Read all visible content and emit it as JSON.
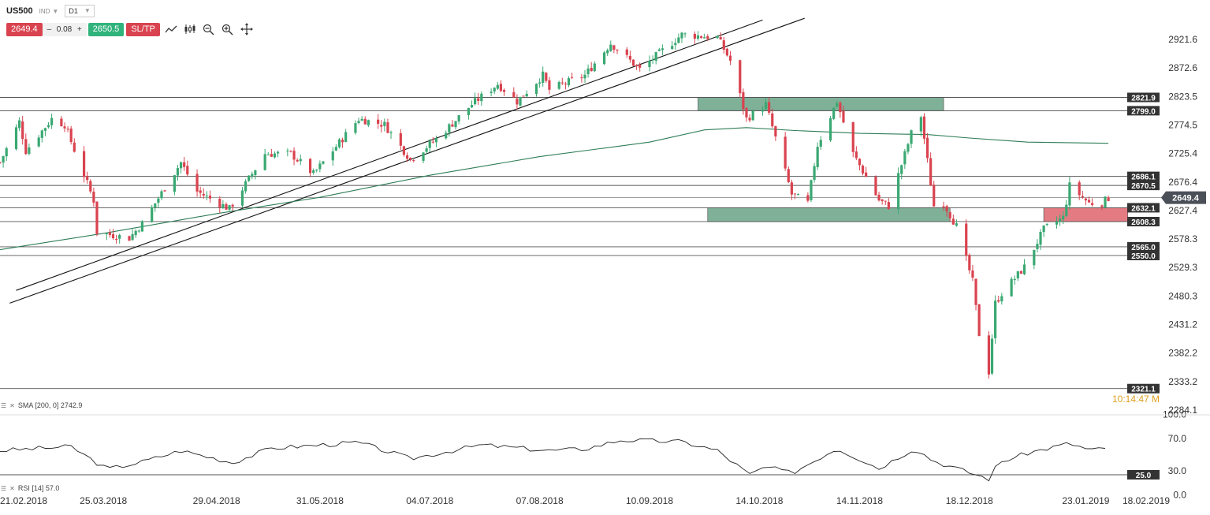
{
  "header": {
    "symbol": "US500",
    "instrument_type": "IND",
    "timeframe": "D1",
    "sell_price": "2649.4",
    "spread": "0.08",
    "buy_price": "2650.5",
    "sltp_label": "SL/TP"
  },
  "toolbar_icons": [
    "line-chart-icon",
    "candlestick-icon",
    "zoom-out-icon",
    "zoom-in-icon",
    "crosshair-icon"
  ],
  "indicators": {
    "sma_label": "SMA [200, 0] 2742.9",
    "rsi_label": "RSI [14] 57.0"
  },
  "colors": {
    "up": "#3aa872",
    "down": "#d9434f",
    "zone_green": "#5f9e7f",
    "zone_red": "#d9434f",
    "sma": "#2e7d57",
    "label_bg": "#333333"
  },
  "chart_data": {
    "type": "candlestick",
    "price_axis_ticks": [
      "2921.6",
      "2872.6",
      "2823.5",
      "2774.5",
      "2725.4",
      "2676.4",
      "2627.4",
      "2578.3",
      "2529.3",
      "2480.3",
      "2431.2",
      "2382.2",
      "2333.2",
      "2284.1"
    ],
    "date_axis_ticks": [
      "21.02.2018",
      "25.03.2018",
      "29.04.2018",
      "31.05.2018",
      "04.07.2018",
      "07.08.2018",
      "10.09.2018",
      "14.10.2018",
      "14.11.2018",
      "18.12.2018",
      "23.01.2019",
      "18.02.2019"
    ],
    "horizontal_levels": [
      2821.9,
      2799.0,
      2686.1,
      2670.5,
      2632.1,
      2608.3,
      2565.0,
      2550.0,
      2321.1
    ],
    "current_price": 2649.4,
    "countdown": "10:14:47 M",
    "zones": [
      {
        "from": "2018-09-25",
        "to": "2018-12-10",
        "low": 2799.0,
        "high": 2821.9,
        "color": "green"
      },
      {
        "from": "2018-09-28",
        "to": "2018-12-12",
        "low": 2608.3,
        "high": 2632.1,
        "color": "green"
      },
      {
        "from": "2019-01-10",
        "to": "2019-02-05",
        "low": 2608.3,
        "high": 2632.1,
        "color": "red"
      }
    ],
    "trendlines": [
      {
        "from": [
          "2018-02-26",
          2490
        ],
        "to": [
          "2018-10-15",
          2955
        ]
      },
      {
        "from": [
          "2018-02-24",
          2468
        ],
        "to": [
          "2018-10-28",
          2958
        ]
      }
    ],
    "price_keypoints": [
      [
        "2018-02-21",
        2710
      ],
      [
        "2018-02-27",
        2780
      ],
      [
        "2018-03-01",
        2730
      ],
      [
        "2018-03-09",
        2785
      ],
      [
        "2018-03-13",
        2775
      ],
      [
        "2018-03-22",
        2645
      ],
      [
        "2018-03-23",
        2590
      ],
      [
        "2018-04-02",
        2580
      ],
      [
        "2018-04-06",
        2605
      ],
      [
        "2018-04-18",
        2710
      ],
      [
        "2018-04-23",
        2660
      ],
      [
        "2018-05-03",
        2630
      ],
      [
        "2018-05-14",
        2725
      ],
      [
        "2018-05-22",
        2725
      ],
      [
        "2018-05-29",
        2690
      ],
      [
        "2018-06-12",
        2785
      ],
      [
        "2018-06-20",
        2775
      ],
      [
        "2018-06-28",
        2715
      ],
      [
        "2018-07-06",
        2750
      ],
      [
        "2018-07-17",
        2810
      ],
      [
        "2018-07-25",
        2845
      ],
      [
        "2018-07-31",
        2815
      ],
      [
        "2018-08-08",
        2860
      ],
      [
        "2018-08-10",
        2835
      ],
      [
        "2018-08-21",
        2860
      ],
      [
        "2018-08-29",
        2915
      ],
      [
        "2018-09-07",
        2870
      ],
      [
        "2018-09-20",
        2930
      ],
      [
        "2018-10-01",
        2925
      ],
      [
        "2018-10-05",
        2885
      ],
      [
        "2018-10-10",
        2785
      ],
      [
        "2018-10-16",
        2810
      ],
      [
        "2018-10-24",
        2655
      ],
      [
        "2018-10-29",
        2640
      ],
      [
        "2018-11-01",
        2740
      ],
      [
        "2018-11-07",
        2815
      ],
      [
        "2018-11-12",
        2725
      ],
      [
        "2018-11-20",
        2645
      ],
      [
        "2018-11-23",
        2635
      ],
      [
        "2018-11-30",
        2760
      ],
      [
        "2018-12-03",
        2790
      ],
      [
        "2018-12-07",
        2635
      ],
      [
        "2018-12-10",
        2640
      ],
      [
        "2018-12-14",
        2600
      ],
      [
        "2018-12-19",
        2505
      ],
      [
        "2018-12-21",
        2415
      ],
      [
        "2018-12-24",
        2350
      ],
      [
        "2018-12-26",
        2468
      ],
      [
        "2018-12-28",
        2485
      ],
      [
        "2019-01-04",
        2530
      ],
      [
        "2019-01-10",
        2595
      ],
      [
        "2019-01-16",
        2615
      ],
      [
        "2019-01-18",
        2670
      ],
      [
        "2019-01-24",
        2640
      ],
      [
        "2019-01-28",
        2640
      ],
      [
        "2019-01-30",
        2649
      ]
    ],
    "sma_200": {
      "label": "SMA [200, 0]",
      "value": 2742.9,
      "keypoints": [
        [
          "2018-02-21",
          2560
        ],
        [
          "2018-03-25",
          2588
        ],
        [
          "2018-04-29",
          2622
        ],
        [
          "2018-05-31",
          2650
        ],
        [
          "2018-07-04",
          2688
        ],
        [
          "2018-08-07",
          2720
        ],
        [
          "2018-09-10",
          2745
        ],
        [
          "2018-09-27",
          2766
        ],
        [
          "2018-10-10",
          2770
        ],
        [
          "2018-10-25",
          2765
        ],
        [
          "2018-11-14",
          2760
        ],
        [
          "2018-12-05",
          2758
        ],
        [
          "2018-12-18",
          2752
        ],
        [
          "2019-01-05",
          2745
        ],
        [
          "2019-01-30",
          2743
        ]
      ]
    },
    "rsi": {
      "label": "RSI [14]",
      "value": 57.0,
      "axis_ticks": [
        "100.0",
        "70.0",
        "30.0",
        "0.0"
      ],
      "level": 25.0,
      "keypoints": [
        [
          "2018-02-21",
          55
        ],
        [
          "2018-03-15",
          60
        ],
        [
          "2018-03-26",
          32
        ],
        [
          "2018-04-05",
          40
        ],
        [
          "2018-04-18",
          55
        ],
        [
          "2018-05-04",
          40
        ],
        [
          "2018-05-16",
          58
        ],
        [
          "2018-06-12",
          65
        ],
        [
          "2018-06-28",
          45
        ],
        [
          "2018-07-20",
          62
        ],
        [
          "2018-08-10",
          55
        ],
        [
          "2018-08-21",
          57
        ],
        [
          "2018-09-01",
          68
        ],
        [
          "2018-09-20",
          66
        ],
        [
          "2018-10-01",
          55
        ],
        [
          "2018-10-11",
          25
        ],
        [
          "2018-10-16",
          35
        ],
        [
          "2018-10-24",
          27
        ],
        [
          "2018-11-07",
          58
        ],
        [
          "2018-11-20",
          33
        ],
        [
          "2018-12-01",
          58
        ],
        [
          "2018-12-07",
          42
        ],
        [
          "2018-12-24",
          20
        ],
        [
          "2018-12-27",
          40
        ],
        [
          "2019-01-05",
          52
        ],
        [
          "2019-01-18",
          64
        ],
        [
          "2019-01-24",
          56
        ],
        [
          "2019-01-30",
          57
        ]
      ]
    }
  }
}
